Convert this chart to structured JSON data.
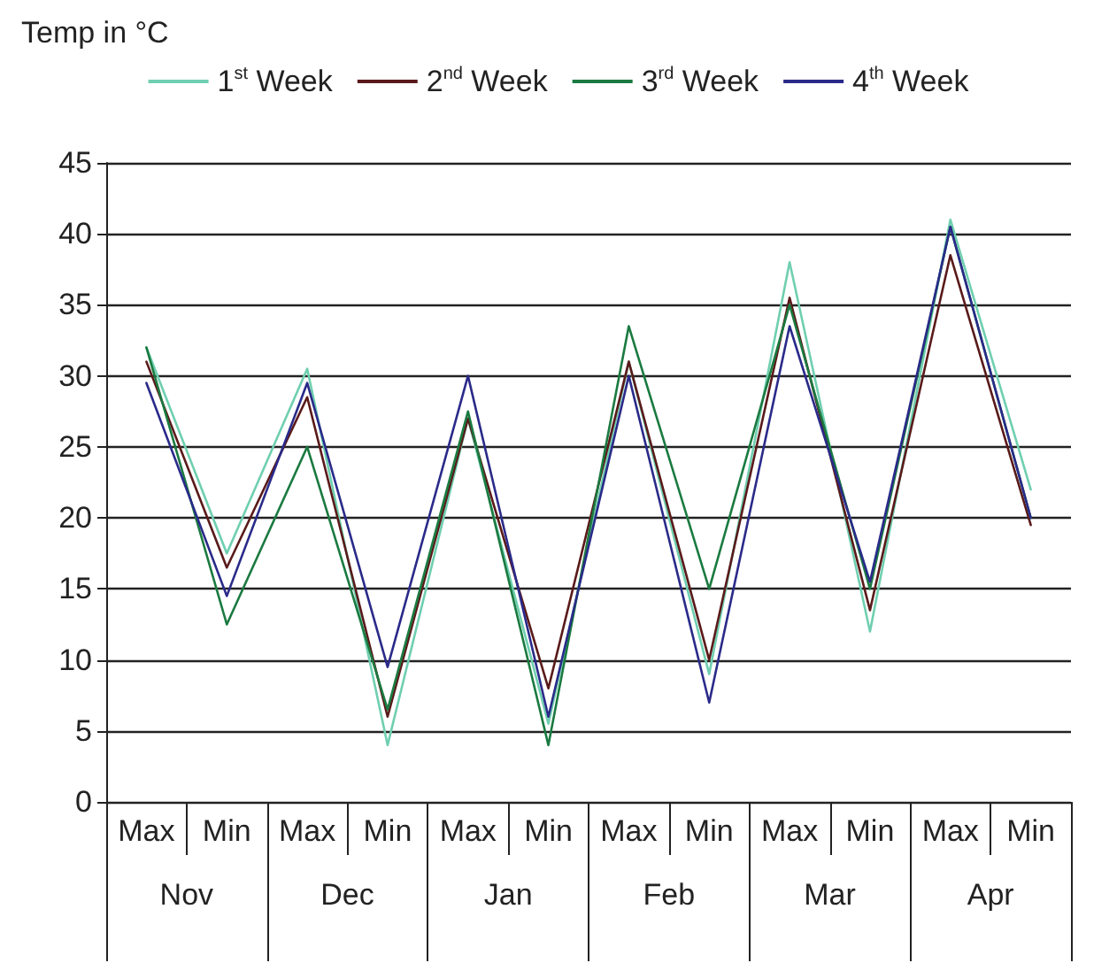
{
  "chart_data": {
    "type": "line",
    "ylabel": "Temp in °C",
    "categories": [
      "Max",
      "Min",
      "Max",
      "Min",
      "Max",
      "Min",
      "Max",
      "Min",
      "Max",
      "Min",
      "Max",
      "Min"
    ],
    "annotations": [
      "Nov",
      "Dec",
      "Jan",
      "Feb",
      "Mar",
      "Apr"
    ],
    "series": [
      {
        "name": "1$^{st}$ Week",
        "color": "#6fcfb0",
        "values": [
          32,
          17.5,
          30.5,
          4,
          27,
          5.5,
          31,
          9,
          38,
          12,
          41,
          22
        ]
      },
      {
        "name": "2$^{nd}$ Week",
        "color": "#5a1a1a",
        "values": [
          31,
          16.5,
          28.5,
          6,
          27,
          8,
          31,
          10,
          35.5,
          13.5,
          38.5,
          19.5
        ]
      },
      {
        "name": "3$^{rd}$ Week",
        "color": "#1a7a40",
        "values": [
          32,
          12.5,
          25,
          6.5,
          27.5,
          4,
          33.5,
          15,
          35,
          15,
          40.5,
          20
        ]
      },
      {
        "name": "4$^{th}$ Week",
        "color": "#2a2a8a",
        "values": [
          29.5,
          14.5,
          29.5,
          9.5,
          30,
          6,
          30,
          7,
          33.5,
          15.5,
          40.5,
          20
        ]
      }
    ],
    "ylim": [
      0,
      45
    ],
    "yticks": [
      0,
      5,
      10,
      15,
      20,
      25,
      30,
      35,
      40,
      45
    ],
    "grid": "y",
    "legend": "top",
    "marker": "none",
    "line_style": "solid"
  }
}
